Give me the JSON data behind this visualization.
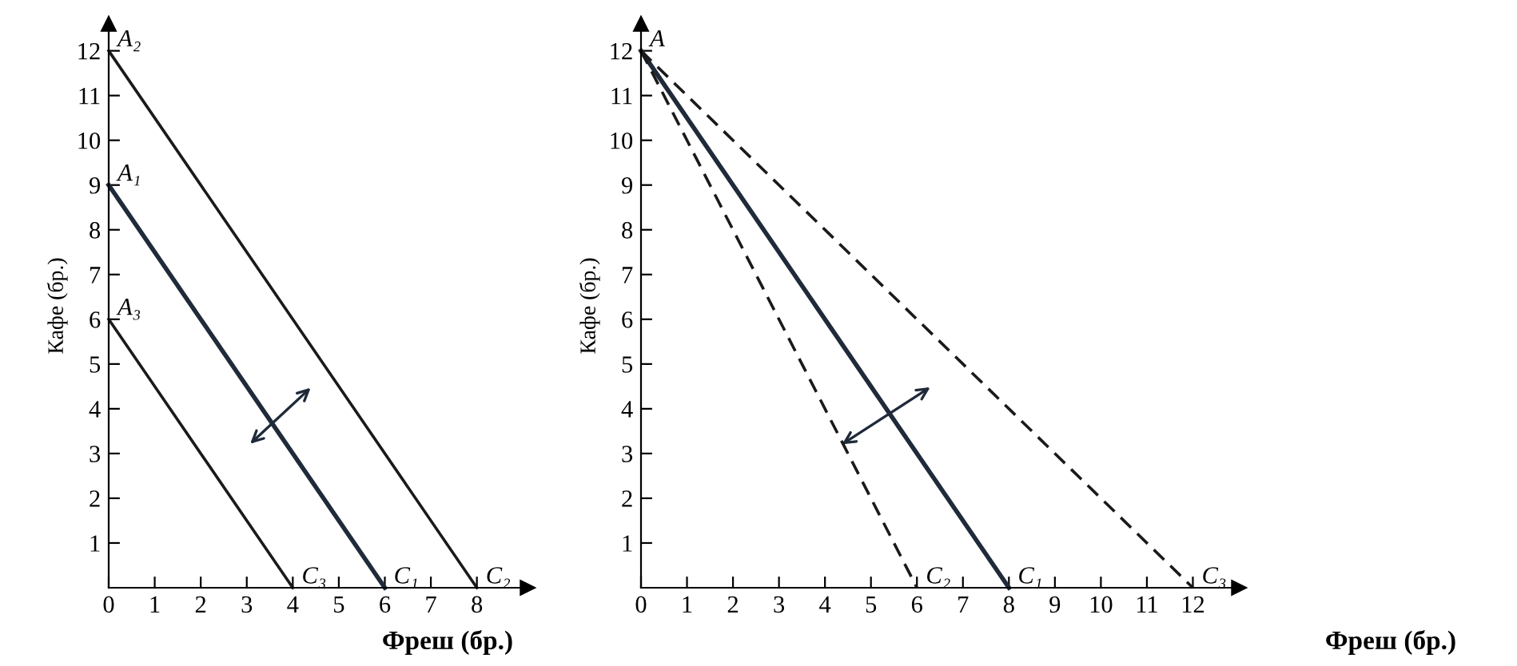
{
  "chart_data": [
    {
      "type": "line",
      "xlabel": "Фреш (бр.)",
      "ylabel": "Кафе (бр.)",
      "xlim": [
        0,
        9.1
      ],
      "ylim": [
        0,
        12.6
      ],
      "xticks": [
        0,
        1,
        2,
        3,
        4,
        5,
        6,
        7,
        8
      ],
      "yticks": [
        1,
        2,
        3,
        4,
        5,
        6,
        7,
        8,
        9,
        10,
        11,
        12
      ],
      "grid": false,
      "legend": false,
      "marker": "none",
      "series": [
        {
          "x": [
            0,
            8
          ],
          "values": [
            12,
            0
          ],
          "color": "#1a1a1a",
          "line_style": "solid"
        },
        {
          "x": [
            0,
            6
          ],
          "values": [
            9,
            0
          ],
          "color": "#1f2a3a",
          "line_style": "solid"
        },
        {
          "x": [
            0,
            4
          ],
          "values": [
            6,
            0
          ],
          "color": "#1a1a1a",
          "line_style": "solid"
        }
      ],
      "annotations": [
        {
          "text": "A₂",
          "x": 0,
          "y": 12
        },
        {
          "text": "A₁",
          "x": 0,
          "y": 9
        },
        {
          "text": "A₃",
          "x": 0,
          "y": 6
        },
        {
          "text": "C₃",
          "x": 4,
          "y": 0
        },
        {
          "text": "C₁",
          "x": 6,
          "y": 0
        },
        {
          "text": "C₂",
          "x": 8,
          "y": 0
        }
      ]
    },
    {
      "type": "line",
      "xlabel": "Фреш (бр.)",
      "ylabel": "Кафе (бр.)",
      "xlim": [
        0,
        13
      ],
      "ylim": [
        0,
        12.6
      ],
      "xticks": [
        0,
        1,
        2,
        3,
        4,
        5,
        6,
        7,
        8,
        9,
        10,
        11,
        12
      ],
      "yticks": [
        1,
        2,
        3,
        4,
        5,
        6,
        7,
        8,
        9,
        10,
        11,
        12
      ],
      "grid": false,
      "legend": false,
      "marker": "none",
      "series": [
        {
          "x": [
            0,
            8
          ],
          "values": [
            12,
            0
          ],
          "color": "#1f2a3a",
          "line_style": "solid"
        },
        {
          "x": [
            0,
            6
          ],
          "values": [
            12,
            0
          ],
          "color": "#1a1a1a",
          "line_style": "dashed"
        },
        {
          "x": [
            0,
            12
          ],
          "values": [
            12,
            0
          ],
          "color": "#1a1a1a",
          "line_style": "dashed"
        }
      ],
      "annotations": [
        {
          "text": "A",
          "x": 0,
          "y": 12
        },
        {
          "text": "C₂",
          "x": 6,
          "y": 0
        },
        {
          "text": "C₁",
          "x": 8,
          "y": 0
        },
        {
          "text": "C₃",
          "x": 12,
          "y": 0
        }
      ]
    }
  ]
}
